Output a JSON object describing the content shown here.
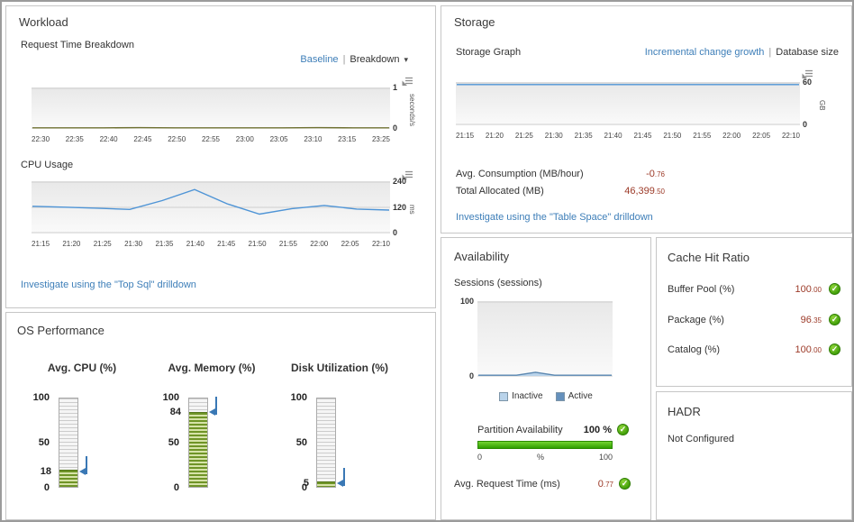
{
  "colors": {
    "link_blue": "#3d7eb8",
    "metric_value_red": "#9c3a28",
    "chart_line_blue": "#4e94d6",
    "request_line_olive": "#6e7031",
    "gauge_fill_green": "#6f9427",
    "check_green": "#3f9e07",
    "bar_green": "#2f9e00",
    "marker_blue": "#3a78b5"
  },
  "icons": {
    "caret_down": "▾",
    "check": "✓"
  },
  "ui": {
    "separator": "|"
  },
  "workload": {
    "title": "Workload",
    "request_time_title": "Request Time Breakdown",
    "baseline_link": "Baseline",
    "breakdown_link": "Breakdown",
    "cpu_title": "CPU Usage",
    "drilldown": "Investigate using the \"Top Sql\" drilldown"
  },
  "os_performance": {
    "title": "OS Performance",
    "gauges": [
      {
        "label": "Avg. CPU (%)",
        "value": 18,
        "min": 0,
        "max": 100,
        "ticks": [
          100,
          50,
          0
        ]
      },
      {
        "label": "Avg. Memory (%)",
        "value": 84,
        "min": 0,
        "max": 100,
        "ticks": [
          100,
          50,
          0
        ]
      },
      {
        "label": "Disk Utilization (%)",
        "value": 5,
        "min": 0,
        "max": 100,
        "ticks": [
          100,
          50,
          0
        ]
      }
    ]
  },
  "storage": {
    "title": "Storage",
    "graph_title": "Storage Graph",
    "incremental_link": "Incremental change growth",
    "database_link": "Database size",
    "metrics": [
      {
        "label": "Avg. Consumption (MB/hour)",
        "value": "-0.76"
      },
      {
        "label": "Total Allocated (MB)",
        "value": "46,399.50"
      }
    ],
    "drilldown": "Investigate using the \"Table Space\" drilldown"
  },
  "availability": {
    "title": "Availability",
    "sessions_title": "Sessions (sessions)",
    "legend": [
      {
        "label": "Inactive",
        "color": "#b9d3ea"
      },
      {
        "label": "Active",
        "color": "#6591bd"
      }
    ],
    "partition": {
      "label": "Partition Availability",
      "value": "100 %",
      "scale": [
        "0",
        "%",
        "100"
      ]
    },
    "request_time": {
      "label": "Avg. Request Time (ms)",
      "value": "0.77"
    }
  },
  "cache_hit_ratio": {
    "title": "Cache Hit Ratio",
    "rows": [
      {
        "label": "Buffer Pool (%)",
        "value": "100.00"
      },
      {
        "label": "Package (%)",
        "value": "96.35"
      },
      {
        "label": "Catalog (%)",
        "value": "100.00"
      }
    ]
  },
  "hadr": {
    "title": "HADR",
    "status": "Not Configured"
  },
  "chart_data": [
    {
      "type": "line",
      "title": "Request Time Breakdown",
      "x": [
        "22:30",
        "22:35",
        "22:40",
        "22:45",
        "22:50",
        "22:55",
        "23:00",
        "23:05",
        "23:10",
        "23:15",
        "23:25"
      ],
      "values": [
        0.005,
        0.005,
        0.005,
        0.008,
        0.005,
        0.005,
        0.005,
        0.005,
        0.008,
        0.005,
        0.005
      ],
      "ylabel": "seconds/s",
      "ylim": [
        0,
        1
      ],
      "yticks": [
        0,
        1
      ],
      "line_color": "#6e7031",
      "axis_side": "right",
      "grid": true
    },
    {
      "type": "line",
      "title": "CPU Usage",
      "x": [
        "21:15",
        "21:20",
        "21:25",
        "21:30",
        "21:35",
        "21:40",
        "21:45",
        "21:50",
        "21:55",
        "22:00",
        "22:05",
        "22:10"
      ],
      "values": [
        125,
        121,
        116,
        110,
        152,
        205,
        137,
        88,
        114,
        129,
        112,
        107
      ],
      "ylabel": "ms",
      "ylim": [
        0,
        240
      ],
      "yticks": [
        0,
        120,
        240
      ],
      "line_color": "#4e94d6",
      "axis_side": "right",
      "grid": true
    },
    {
      "type": "line",
      "title": "Storage Graph",
      "x": [
        "21:15",
        "21:20",
        "21:25",
        "21:30",
        "21:35",
        "21:40",
        "21:45",
        "21:50",
        "21:55",
        "22:00",
        "22:05",
        "22:10"
      ],
      "values": [
        57.6,
        57.6,
        57.6,
        57.6,
        57.6,
        57.6,
        57.6,
        57.6,
        57.6,
        57.6,
        57.6,
        57.6
      ],
      "ylabel": "GB",
      "ylim": [
        0,
        60
      ],
      "yticks": [
        0,
        60
      ],
      "line_color": "#4e94d6",
      "axis_side": "right",
      "grid": true
    },
    {
      "type": "area",
      "title": "Sessions (sessions)",
      "x": [],
      "values": [
        1,
        1,
        1,
        5,
        1,
        1,
        1,
        1
      ],
      "ylabel": "",
      "ylim": [
        0,
        100
      ],
      "yticks": [
        0,
        100
      ],
      "line_color": "#5b87b0",
      "fill_color": "#b9d3ea",
      "axis_side": "left",
      "grid": true
    }
  ]
}
